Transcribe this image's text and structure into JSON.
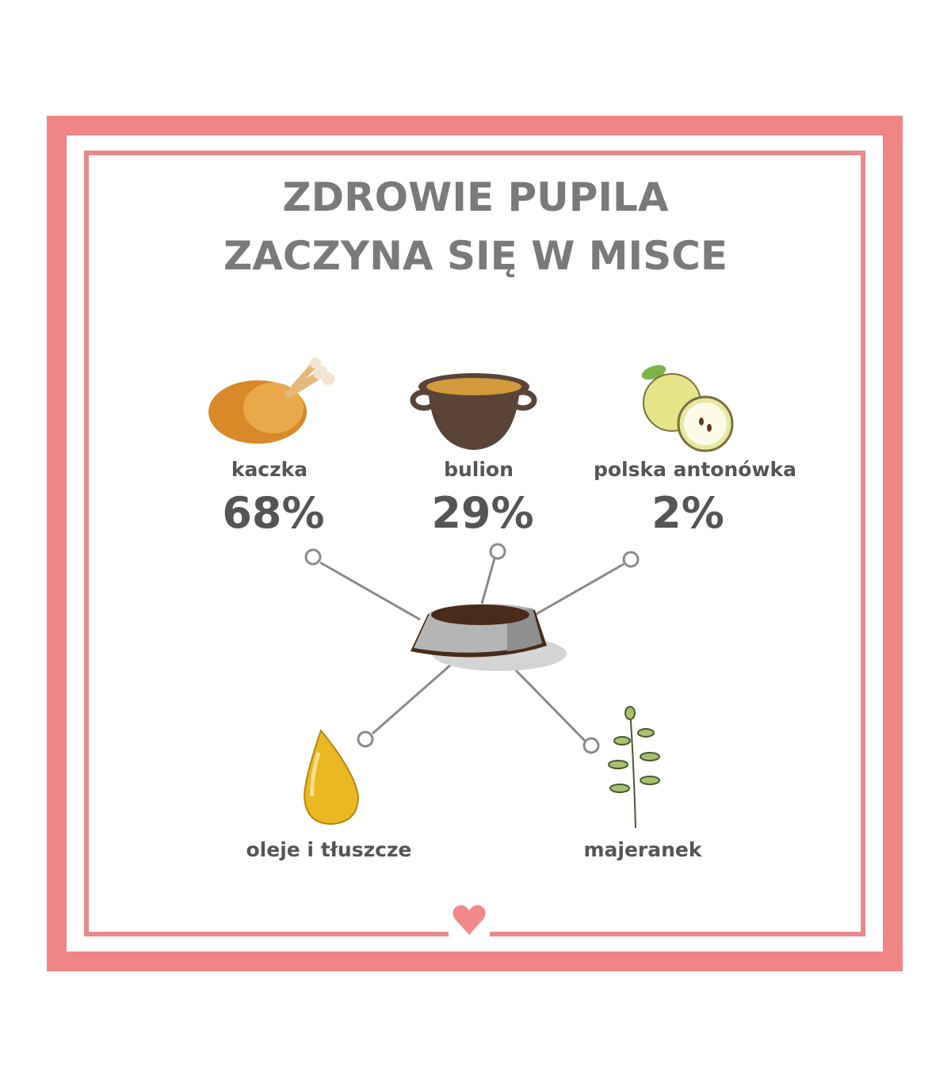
{
  "title": {
    "line1": "ZDROWIE PUPILA",
    "line2": "ZACZYNA SIĘ W MISCE"
  },
  "colors": {
    "frame": "#ef8585",
    "text": "#555555",
    "title": "#7a7a7a",
    "connector": "#888888"
  },
  "ingredients": [
    {
      "label": "kaczka",
      "percent": "68%",
      "icon": "roast-duck-icon"
    },
    {
      "label": "bulion",
      "percent": "29%",
      "icon": "broth-pot-icon"
    },
    {
      "label": "polska antonówka",
      "percent": "2%",
      "icon": "apple-icon"
    },
    {
      "label": "oleje i tłuszcze",
      "icon": "oil-drop-icon"
    },
    {
      "label": "majeranek",
      "icon": "marjoram-icon"
    }
  ],
  "center_icon": "dog-bowl-icon",
  "footer_icon": "heart-icon"
}
